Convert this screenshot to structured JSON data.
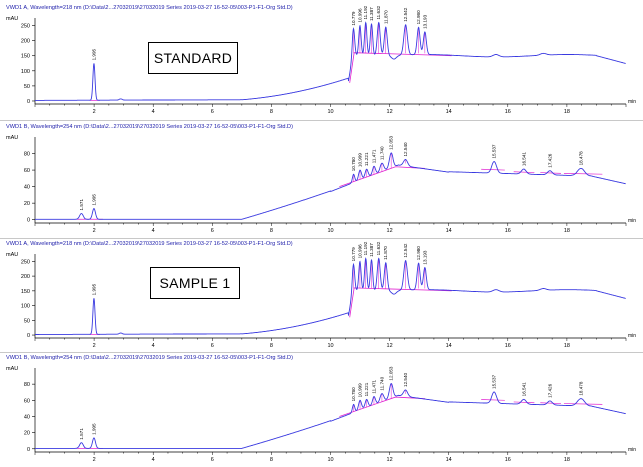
{
  "colors": {
    "trace": "#3a3ae0",
    "baseline": "#e020d0",
    "axis": "#000000",
    "title": "#1a1aa8"
  },
  "panels": [
    {
      "title": "VWD1 A, Wavelength=218 nm (D:\\Data\\2...27032019\\27032019 Series 2019-03-27 16-52-05\\003-P1-F1-Org Std.D)",
      "ylabel": "mAU",
      "yticks": [
        0,
        50,
        100,
        150,
        200,
        250
      ],
      "ylim": [
        -10,
        275
      ],
      "xlabel": "min",
      "xticks": [
        2,
        4,
        6,
        8,
        10,
        12,
        14,
        16,
        18
      ],
      "xlim": [
        0,
        20
      ],
      "box_label": "STANDARD",
      "peak_labels": [
        "1.995",
        "10.779",
        "10.996",
        "11.192",
        "11.387",
        "11.632",
        "11.870",
        "12.542",
        "12.980",
        "13.193"
      ],
      "trace_type": "standard"
    },
    {
      "title": "VWD1 B, Wavelength=254 nm (D:\\Data\\2...27032019\\27032019 Series 2019-03-27 16-52-05\\003-P1-F1-Org Std.D)",
      "ylabel": "mAU",
      "yticks": [
        0,
        20,
        40,
        60,
        80
      ],
      "ylim": [
        -4,
        100
      ],
      "xlabel": "min",
      "xticks": [
        2,
        4,
        6,
        8,
        10,
        12,
        14,
        16,
        18
      ],
      "xlim": [
        0,
        20
      ],
      "box_label": "",
      "peak_labels": [
        "1.571",
        "1.995",
        "10.780",
        "10.999",
        "11.221",
        "11.471",
        "11.740",
        "12.053",
        "12.540",
        "15.537",
        "16.541",
        "17.426",
        "18.478"
      ],
      "trace_type": "uv254"
    },
    {
      "title": "VWD1 A, Wavelength=218 nm (D:\\Data\\2...27032019\\27032019 Series 2019-03-27 16-52-05\\003-P1-F1-Org Std.D)",
      "ylabel": "mAU",
      "yticks": [
        0,
        50,
        100,
        150,
        200,
        250
      ],
      "ylim": [
        -10,
        275
      ],
      "xlabel": "min",
      "xticks": [
        2,
        4,
        6,
        8,
        10,
        12,
        14,
        16,
        18
      ],
      "xlim": [
        0,
        20
      ],
      "box_label": "SAMPLE 1",
      "peak_labels": [
        "1.995",
        "10.779",
        "10.996",
        "11.192",
        "11.387",
        "11.632",
        "11.870",
        "12.542",
        "12.980",
        "13.193"
      ],
      "trace_type": "standard"
    },
    {
      "title": "VWD1 B, Wavelength=254 nm (D:\\Data\\2...27032019\\27032019 Series 2019-03-27 16-52-05\\003-P1-F1-Org Std.D)",
      "ylabel": "mAU",
      "yticks": [
        0,
        20,
        40,
        60,
        80
      ],
      "ylim": [
        -4,
        100
      ],
      "xlabel": "min",
      "xticks": [
        2,
        4,
        6,
        8,
        10,
        12,
        14,
        16,
        18
      ],
      "xlim": [
        0,
        20
      ],
      "box_label": "",
      "peak_labels": [
        "1.571",
        "1.995",
        "10.780",
        "10.999",
        "11.221",
        "11.471",
        "11.740",
        "12.053",
        "12.540",
        "15.537",
        "16.541",
        "17.426",
        "18.478"
      ],
      "trace_type": "uv254"
    }
  ],
  "chart_data": [
    {
      "type": "line",
      "title": "VWD1 A, Wavelength=218 nm",
      "ylabel": "mAU",
      "xlabel": "min",
      "xlim": [
        0,
        20
      ],
      "ylim": [
        -10,
        275
      ],
      "series": [
        {
          "values": [
            [
              0,
              2
            ],
            [
              1.8,
              3
            ],
            [
              1.995,
              125
            ],
            [
              2.2,
              4
            ],
            [
              4,
              3
            ],
            [
              6,
              2
            ],
            [
              7,
              5
            ],
            [
              8,
              12
            ],
            [
              9,
              22
            ],
            [
              10,
              38
            ],
            [
              10.5,
              58
            ],
            [
              10.779,
              245
            ],
            [
              10.996,
              255
            ],
            [
              11.192,
              265
            ],
            [
              11.387,
              260
            ],
            [
              11.632,
              262
            ],
            [
              11.87,
              245
            ],
            [
              12.1,
              152
            ],
            [
              12.542,
              250
            ],
            [
              12.8,
              160
            ],
            [
              12.98,
              240
            ],
            [
              13.193,
              225
            ],
            [
              13.5,
              155
            ],
            [
              14,
              150
            ],
            [
              15.6,
              156
            ],
            [
              16,
              150
            ],
            [
              17,
              152
            ],
            [
              18,
              148
            ],
            [
              19,
              145
            ],
            [
              19.5,
              135
            ],
            [
              20,
              125
            ]
          ]
        }
      ],
      "peaks": [
        1.995,
        10.779,
        10.996,
        11.192,
        11.387,
        11.632,
        11.87,
        12.542,
        12.98,
        13.193
      ]
    },
    {
      "type": "line",
      "title": "VWD1 B, Wavelength=254 nm",
      "ylabel": "mAU",
      "xlabel": "min",
      "xlim": [
        0,
        20
      ],
      "ylim": [
        -4,
        100
      ],
      "series": [
        {
          "values": [
            [
              0,
              1
            ],
            [
              1.571,
              8
            ],
            [
              1.995,
              15
            ],
            [
              2.3,
              1
            ],
            [
              4,
              0
            ],
            [
              6,
              1
            ],
            [
              7,
              4
            ],
            [
              8,
              11
            ],
            [
              9,
              20
            ],
            [
              10,
              32
            ],
            [
              10.78,
              50
            ],
            [
              10.999,
              58
            ],
            [
              11.221,
              62
            ],
            [
              11.471,
              65
            ],
            [
              11.74,
              68
            ],
            [
              12.053,
              78
            ],
            [
              12.54,
              62
            ],
            [
              13,
              60
            ],
            [
              14,
              55
            ],
            [
              15.537,
              70
            ],
            [
              16,
              56
            ],
            [
              16.541,
              60
            ],
            [
              17,
              55
            ],
            [
              17.426,
              58
            ],
            [
              18,
              54
            ],
            [
              18.478,
              62
            ],
            [
              19,
              52
            ],
            [
              20,
              42
            ]
          ]
        }
      ],
      "peaks": [
        1.571,
        1.995,
        10.78,
        10.999,
        11.221,
        11.471,
        11.74,
        12.053,
        12.54,
        15.537,
        16.541,
        17.426,
        18.478
      ]
    },
    {
      "type": "line",
      "title": "VWD1 A, Wavelength=218 nm",
      "ylabel": "mAU",
      "xlabel": "min",
      "xlim": [
        0,
        20
      ],
      "ylim": [
        -10,
        275
      ],
      "series": [
        {
          "values": [
            [
              0,
              2
            ],
            [
              1.8,
              3
            ],
            [
              1.995,
              125
            ],
            [
              2.2,
              4
            ],
            [
              4,
              3
            ],
            [
              6,
              2
            ],
            [
              7,
              5
            ],
            [
              8,
              12
            ],
            [
              9,
              22
            ],
            [
              10,
              38
            ],
            [
              10.5,
              58
            ],
            [
              10.779,
              245
            ],
            [
              10.996,
              255
            ],
            [
              11.192,
              265
            ],
            [
              11.387,
              260
            ],
            [
              11.632,
              262
            ],
            [
              11.87,
              245
            ],
            [
              12.1,
              152
            ],
            [
              12.542,
              250
            ],
            [
              12.8,
              160
            ],
            [
              12.98,
              240
            ],
            [
              13.193,
              225
            ],
            [
              13.5,
              155
            ],
            [
              14,
              150
            ],
            [
              15.6,
              156
            ],
            [
              16,
              150
            ],
            [
              17,
              152
            ],
            [
              18,
              148
            ],
            [
              19,
              145
            ],
            [
              19.5,
              135
            ],
            [
              20,
              125
            ]
          ]
        }
      ],
      "peaks": [
        1.995,
        10.779,
        10.996,
        11.192,
        11.387,
        11.632,
        11.87,
        12.542,
        12.98,
        13.193
      ]
    },
    {
      "type": "line",
      "title": "VWD1 B, Wavelength=254 nm",
      "ylabel": "mAU",
      "xlabel": "min",
      "xlim": [
        0,
        20
      ],
      "ylim": [
        -4,
        100
      ],
      "series": [
        {
          "values": [
            [
              0,
              1
            ],
            [
              1.571,
              8
            ],
            [
              1.995,
              15
            ],
            [
              2.3,
              1
            ],
            [
              4,
              0
            ],
            [
              6,
              1
            ],
            [
              7,
              4
            ],
            [
              8,
              11
            ],
            [
              9,
              20
            ],
            [
              10,
              32
            ],
            [
              10.78,
              50
            ],
            [
              10.999,
              58
            ],
            [
              11.221,
              62
            ],
            [
              11.471,
              65
            ],
            [
              11.74,
              68
            ],
            [
              12.053,
              78
            ],
            [
              12.54,
              62
            ],
            [
              13,
              60
            ],
            [
              14,
              55
            ],
            [
              15.537,
              70
            ],
            [
              16,
              56
            ],
            [
              16.541,
              60
            ],
            [
              17,
              55
            ],
            [
              17.426,
              58
            ],
            [
              18,
              54
            ],
            [
              18.478,
              62
            ],
            [
              19,
              52
            ],
            [
              20,
              42
            ]
          ]
        }
      ],
      "peaks": [
        1.571,
        1.995,
        10.78,
        10.999,
        11.221,
        11.471,
        11.74,
        12.053,
        12.54,
        15.537,
        16.541,
        17.426,
        18.478
      ]
    }
  ]
}
